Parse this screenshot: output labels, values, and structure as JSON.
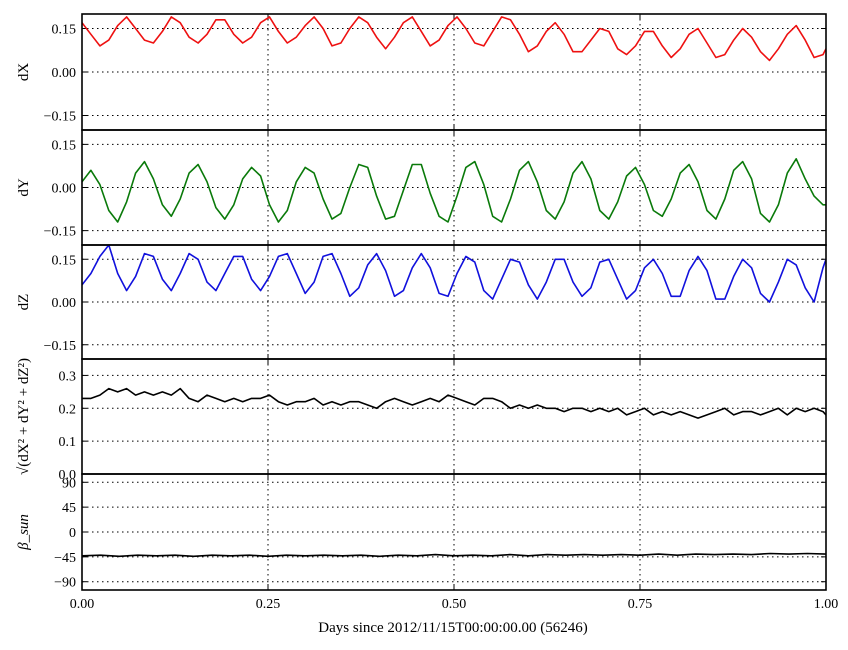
{
  "chart_data": {
    "type": "line",
    "xlabel": "Days since 2012/11/15T00:00:00.00 (56246)",
    "xlim": [
      0,
      1.0
    ],
    "xticks": [
      0.0,
      0.25,
      0.5,
      0.75,
      1.0
    ],
    "xtick_labels": [
      "0.00",
      "0.25",
      "0.50",
      "0.75",
      "1.00"
    ],
    "grid": true,
    "panels": [
      {
        "ylabel": "dX",
        "ylim": [
          -0.2,
          0.2
        ],
        "yticks": [
          -0.15,
          0.0,
          0.15
        ],
        "ytick_labels": [
          "−0.15",
          "0.00",
          "0.15"
        ],
        "color": "#ee1111",
        "series": {
          "x": [
            0.0,
            0.012,
            0.024,
            0.036,
            0.048,
            0.06,
            0.072,
            0.084,
            0.096,
            0.108,
            0.12,
            0.132,
            0.144,
            0.156,
            0.168,
            0.18,
            0.192,
            0.204,
            0.216,
            0.228,
            0.24,
            0.252,
            0.264,
            0.276,
            0.288,
            0.3,
            0.312,
            0.324,
            0.336,
            0.348,
            0.36,
            0.372,
            0.384,
            0.396,
            0.408,
            0.42,
            0.432,
            0.444,
            0.456,
            0.468,
            0.48,
            0.492,
            0.504,
            0.516,
            0.528,
            0.54,
            0.552,
            0.564,
            0.576,
            0.588,
            0.6,
            0.612,
            0.624,
            0.636,
            0.648,
            0.66,
            0.672,
            0.684,
            0.696,
            0.708,
            0.72,
            0.732,
            0.744,
            0.756,
            0.768,
            0.78,
            0.792,
            0.804,
            0.816,
            0.828,
            0.84,
            0.852,
            0.864,
            0.876,
            0.888,
            0.9,
            0.912,
            0.924,
            0.936,
            0.948,
            0.96,
            0.972,
            0.984,
            0.996,
            1.0
          ],
          "y": [
            0.17,
            0.13,
            0.09,
            0.11,
            0.16,
            0.19,
            0.15,
            0.11,
            0.1,
            0.14,
            0.19,
            0.17,
            0.12,
            0.1,
            0.13,
            0.18,
            0.18,
            0.13,
            0.1,
            0.12,
            0.17,
            0.19,
            0.14,
            0.1,
            0.12,
            0.16,
            0.19,
            0.15,
            0.09,
            0.1,
            0.15,
            0.19,
            0.17,
            0.12,
            0.08,
            0.12,
            0.17,
            0.19,
            0.14,
            0.09,
            0.11,
            0.16,
            0.19,
            0.15,
            0.1,
            0.09,
            0.14,
            0.19,
            0.18,
            0.13,
            0.07,
            0.09,
            0.14,
            0.17,
            0.13,
            0.07,
            0.07,
            0.11,
            0.15,
            0.14,
            0.08,
            0.06,
            0.09,
            0.14,
            0.14,
            0.09,
            0.05,
            0.08,
            0.13,
            0.15,
            0.1,
            0.05,
            0.06,
            0.11,
            0.15,
            0.12,
            0.07,
            0.04,
            0.08,
            0.13,
            0.16,
            0.11,
            0.05,
            0.06,
            0.08
          ]
        }
      },
      {
        "ylabel": "dY",
        "ylim": [
          -0.2,
          0.2
        ],
        "yticks": [
          -0.15,
          0.0,
          0.15
        ],
        "ytick_labels": [
          "−0.15",
          "0.00",
          "0.15"
        ],
        "color": "#0a7a0a",
        "series": {
          "x": [
            0.0,
            0.012,
            0.024,
            0.036,
            0.048,
            0.06,
            0.072,
            0.084,
            0.096,
            0.108,
            0.12,
            0.132,
            0.144,
            0.156,
            0.168,
            0.18,
            0.192,
            0.204,
            0.216,
            0.228,
            0.24,
            0.252,
            0.264,
            0.276,
            0.288,
            0.3,
            0.312,
            0.324,
            0.336,
            0.348,
            0.36,
            0.372,
            0.384,
            0.396,
            0.408,
            0.42,
            0.432,
            0.444,
            0.456,
            0.468,
            0.48,
            0.492,
            0.504,
            0.516,
            0.528,
            0.54,
            0.552,
            0.564,
            0.576,
            0.588,
            0.6,
            0.612,
            0.624,
            0.636,
            0.648,
            0.66,
            0.672,
            0.684,
            0.696,
            0.708,
            0.72,
            0.732,
            0.744,
            0.756,
            0.768,
            0.78,
            0.792,
            0.804,
            0.816,
            0.828,
            0.84,
            0.852,
            0.864,
            0.876,
            0.888,
            0.9,
            0.912,
            0.924,
            0.936,
            0.948,
            0.96,
            0.972,
            0.984,
            0.996,
            1.0
          ],
          "y": [
            0.02,
            0.06,
            0.01,
            -0.08,
            -0.12,
            -0.05,
            0.05,
            0.09,
            0.03,
            -0.06,
            -0.1,
            -0.04,
            0.05,
            0.08,
            0.02,
            -0.07,
            -0.11,
            -0.06,
            0.03,
            0.07,
            0.04,
            -0.06,
            -0.12,
            -0.08,
            0.02,
            0.07,
            0.05,
            -0.04,
            -0.11,
            -0.09,
            0.0,
            0.08,
            0.07,
            -0.03,
            -0.11,
            -0.1,
            -0.01,
            0.08,
            0.08,
            -0.02,
            -0.1,
            -0.12,
            -0.03,
            0.07,
            0.09,
            0.01,
            -0.1,
            -0.12,
            -0.04,
            0.06,
            0.09,
            0.02,
            -0.08,
            -0.11,
            -0.05,
            0.05,
            0.09,
            0.03,
            -0.08,
            -0.11,
            -0.05,
            0.04,
            0.07,
            0.01,
            -0.08,
            -0.1,
            -0.04,
            0.05,
            0.08,
            0.02,
            -0.08,
            -0.11,
            -0.04,
            0.06,
            0.09,
            0.03,
            -0.09,
            -0.12,
            -0.06,
            0.05,
            0.1,
            0.03,
            -0.03,
            -0.06,
            -0.06
          ]
        }
      },
      {
        "ylabel": "dZ",
        "ylim": [
          -0.2,
          0.2
        ],
        "yticks": [
          -0.15,
          0.0,
          0.15
        ],
        "ytick_labels": [
          "−0.15",
          "0.00",
          "0.15"
        ],
        "color": "#1111dd",
        "series": {
          "x": [
            0.0,
            0.012,
            0.024,
            0.036,
            0.048,
            0.06,
            0.072,
            0.084,
            0.096,
            0.108,
            0.12,
            0.132,
            0.144,
            0.156,
            0.168,
            0.18,
            0.192,
            0.204,
            0.216,
            0.228,
            0.24,
            0.252,
            0.264,
            0.276,
            0.288,
            0.3,
            0.312,
            0.324,
            0.336,
            0.348,
            0.36,
            0.372,
            0.384,
            0.396,
            0.408,
            0.42,
            0.432,
            0.444,
            0.456,
            0.468,
            0.48,
            0.492,
            0.504,
            0.516,
            0.528,
            0.54,
            0.552,
            0.564,
            0.576,
            0.588,
            0.6,
            0.612,
            0.624,
            0.636,
            0.648,
            0.66,
            0.672,
            0.684,
            0.696,
            0.708,
            0.72,
            0.732,
            0.744,
            0.756,
            0.768,
            0.78,
            0.792,
            0.804,
            0.816,
            0.828,
            0.84,
            0.852,
            0.864,
            0.876,
            0.888,
            0.9,
            0.912,
            0.924,
            0.936,
            0.948,
            0.96,
            0.972,
            0.984,
            0.996,
            1.0
          ],
          "y": [
            0.06,
            0.1,
            0.16,
            0.2,
            0.1,
            0.04,
            0.09,
            0.17,
            0.16,
            0.08,
            0.04,
            0.1,
            0.17,
            0.15,
            0.07,
            0.04,
            0.1,
            0.16,
            0.16,
            0.08,
            0.04,
            0.09,
            0.16,
            0.17,
            0.1,
            0.03,
            0.07,
            0.16,
            0.17,
            0.1,
            0.02,
            0.05,
            0.13,
            0.17,
            0.11,
            0.02,
            0.04,
            0.12,
            0.17,
            0.12,
            0.03,
            0.02,
            0.1,
            0.16,
            0.14,
            0.04,
            0.01,
            0.08,
            0.15,
            0.14,
            0.06,
            0.01,
            0.07,
            0.15,
            0.15,
            0.07,
            0.02,
            0.05,
            0.14,
            0.15,
            0.08,
            0.01,
            0.04,
            0.12,
            0.15,
            0.1,
            0.02,
            0.02,
            0.11,
            0.16,
            0.11,
            0.01,
            0.01,
            0.09,
            0.15,
            0.12,
            0.03,
            0.0,
            0.07,
            0.15,
            0.13,
            0.05,
            0.0,
            0.12,
            0.15
          ]
        }
      },
      {
        "ylabel": "√(dX² + dY² + dZ²)",
        "ylim": [
          0,
          0.35
        ],
        "yticks": [
          0.0,
          0.1,
          0.2,
          0.3
        ],
        "ytick_labels": [
          "0.0",
          "0.1",
          "0.2",
          "0.3"
        ],
        "color": "#000000",
        "series": {
          "x": [
            0.0,
            0.012,
            0.024,
            0.036,
            0.048,
            0.06,
            0.072,
            0.084,
            0.096,
            0.108,
            0.12,
            0.132,
            0.144,
            0.156,
            0.168,
            0.18,
            0.192,
            0.204,
            0.216,
            0.228,
            0.24,
            0.252,
            0.264,
            0.276,
            0.288,
            0.3,
            0.312,
            0.324,
            0.336,
            0.348,
            0.36,
            0.372,
            0.384,
            0.396,
            0.408,
            0.42,
            0.432,
            0.444,
            0.456,
            0.468,
            0.48,
            0.492,
            0.504,
            0.516,
            0.528,
            0.54,
            0.552,
            0.564,
            0.576,
            0.588,
            0.6,
            0.612,
            0.624,
            0.636,
            0.648,
            0.66,
            0.672,
            0.684,
            0.696,
            0.708,
            0.72,
            0.732,
            0.744,
            0.756,
            0.768,
            0.78,
            0.792,
            0.804,
            0.816,
            0.828,
            0.84,
            0.852,
            0.864,
            0.876,
            0.888,
            0.9,
            0.912,
            0.924,
            0.936,
            0.948,
            0.96,
            0.972,
            0.984,
            0.996,
            1.0
          ],
          "y": [
            0.23,
            0.23,
            0.24,
            0.26,
            0.25,
            0.26,
            0.24,
            0.25,
            0.24,
            0.25,
            0.24,
            0.26,
            0.23,
            0.22,
            0.24,
            0.23,
            0.22,
            0.23,
            0.22,
            0.23,
            0.23,
            0.24,
            0.22,
            0.21,
            0.22,
            0.22,
            0.23,
            0.21,
            0.22,
            0.21,
            0.22,
            0.22,
            0.21,
            0.2,
            0.22,
            0.23,
            0.22,
            0.21,
            0.22,
            0.23,
            0.22,
            0.24,
            0.23,
            0.22,
            0.21,
            0.23,
            0.23,
            0.22,
            0.2,
            0.21,
            0.2,
            0.21,
            0.2,
            0.2,
            0.19,
            0.2,
            0.2,
            0.19,
            0.2,
            0.19,
            0.2,
            0.18,
            0.19,
            0.2,
            0.18,
            0.19,
            0.18,
            0.19,
            0.18,
            0.17,
            0.18,
            0.19,
            0.2,
            0.18,
            0.19,
            0.19,
            0.18,
            0.19,
            0.2,
            0.18,
            0.2,
            0.19,
            0.2,
            0.19,
            0.18
          ]
        }
      },
      {
        "ylabel": "β_sun",
        "ylim": [
          -105,
          105
        ],
        "yticks": [
          -90,
          -45,
          0,
          45,
          90
        ],
        "ytick_labels": [
          "−90",
          "−45",
          "0",
          "45",
          "90"
        ],
        "color": "#000000",
        "series": {
          "x": [
            0.0,
            0.025,
            0.05,
            0.075,
            0.1,
            0.125,
            0.15,
            0.175,
            0.2,
            0.225,
            0.25,
            0.275,
            0.3,
            0.325,
            0.35,
            0.375,
            0.4,
            0.425,
            0.45,
            0.475,
            0.5,
            0.525,
            0.55,
            0.575,
            0.6,
            0.625,
            0.65,
            0.675,
            0.7,
            0.725,
            0.75,
            0.775,
            0.8,
            0.825,
            0.85,
            0.875,
            0.9,
            0.925,
            0.95,
            0.975,
            1.0
          ],
          "y": [
            -43,
            -42,
            -44,
            -42,
            -43,
            -42,
            -44,
            -42,
            -43,
            -42,
            -44,
            -42,
            -43,
            -42,
            -43,
            -42,
            -44,
            -42,
            -43,
            -41,
            -43,
            -42,
            -43,
            -41,
            -43,
            -41,
            -42,
            -41,
            -42,
            -41,
            -42,
            -40,
            -42,
            -40,
            -41,
            -40,
            -41,
            -39,
            -40,
            -39,
            -40
          ]
        }
      }
    ]
  }
}
